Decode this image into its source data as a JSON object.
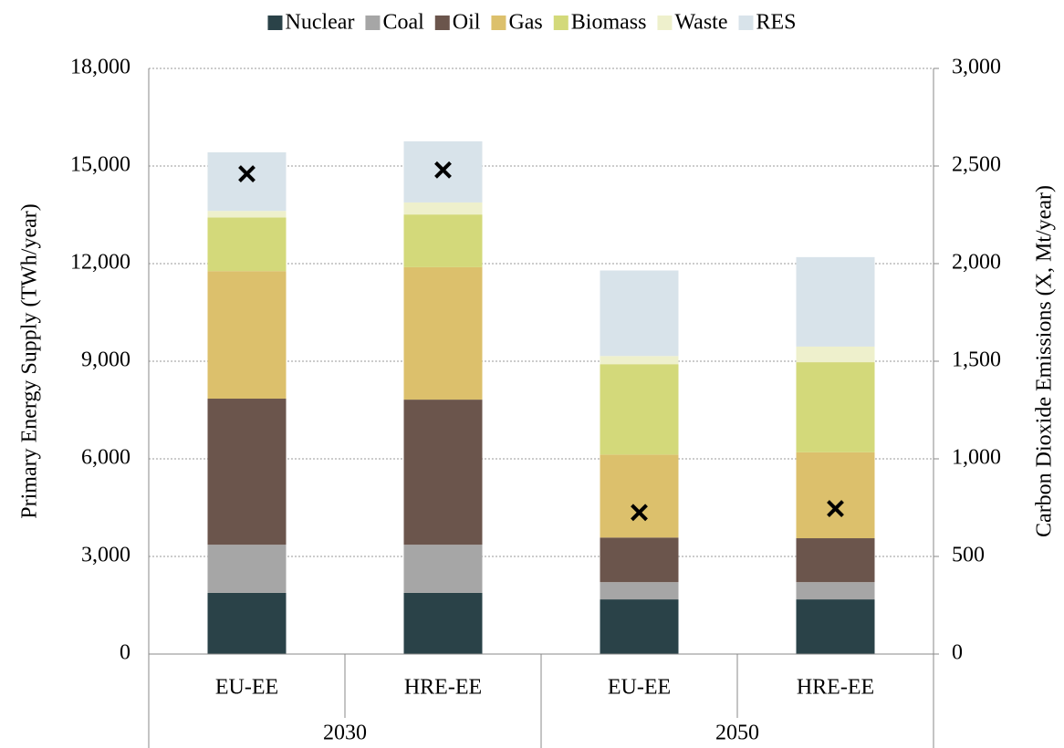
{
  "chart_data": {
    "type": "stacked_bar",
    "ylabel": "Primary Energy Supply (TWh/year)",
    "y2label": "Carbon Dioxide Emissions (X, Mt/year)",
    "categories": [
      "EU-EE",
      "HRE-EE",
      "EU-EE",
      "HRE-EE"
    ],
    "groups": [
      "2030",
      "2050"
    ],
    "series": [
      {
        "name": "Nuclear",
        "color": "#2a4248",
        "values": [
          1880,
          1880,
          1680,
          1680
        ]
      },
      {
        "name": "Coal",
        "color": "#a6a6a6",
        "values": [
          1480,
          1480,
          530,
          530
        ]
      },
      {
        "name": "Oil",
        "color": "#6b554c",
        "values": [
          4490,
          4460,
          1370,
          1350
        ]
      },
      {
        "name": "Gas",
        "color": "#dcc06c",
        "values": [
          3920,
          4070,
          2550,
          2640
        ]
      },
      {
        "name": "Biomass",
        "color": "#d3d97a",
        "values": [
          1650,
          1620,
          2780,
          2770
        ]
      },
      {
        "name": "Waste",
        "color": "#eef0cc",
        "values": [
          200,
          370,
          250,
          480
        ]
      },
      {
        "name": "RES",
        "color": "#d8e3ea",
        "values": [
          1800,
          1880,
          2630,
          2750
        ]
      }
    ],
    "markers": {
      "axis": "y2",
      "color": "#000000",
      "values": [
        2460,
        2480,
        725,
        745
      ]
    },
    "ylim": [
      0,
      18000
    ],
    "yticks": [
      0,
      {
        "value": 3000,
        "label": "3,000"
      },
      {
        "value": 6000,
        "label": "6,000"
      },
      {
        "value": 9000,
        "label": "9,000"
      },
      {
        "value": 12000,
        "label": "12,000"
      },
      {
        "value": 15000,
        "label": "15,000"
      },
      {
        "value": 18000,
        "label": "18,000"
      }
    ],
    "y2lim": [
      0,
      3000
    ],
    "y2ticks": [
      0,
      500,
      {
        "value": 1000,
        "label": "1,000"
      },
      {
        "value": 1500,
        "label": "1,500"
      },
      {
        "value": 2000,
        "label": "2,000"
      },
      {
        "value": 2500,
        "label": "2,500"
      },
      {
        "value": 3000,
        "label": "3,000"
      }
    ],
    "grid": true,
    "legend": "top"
  }
}
